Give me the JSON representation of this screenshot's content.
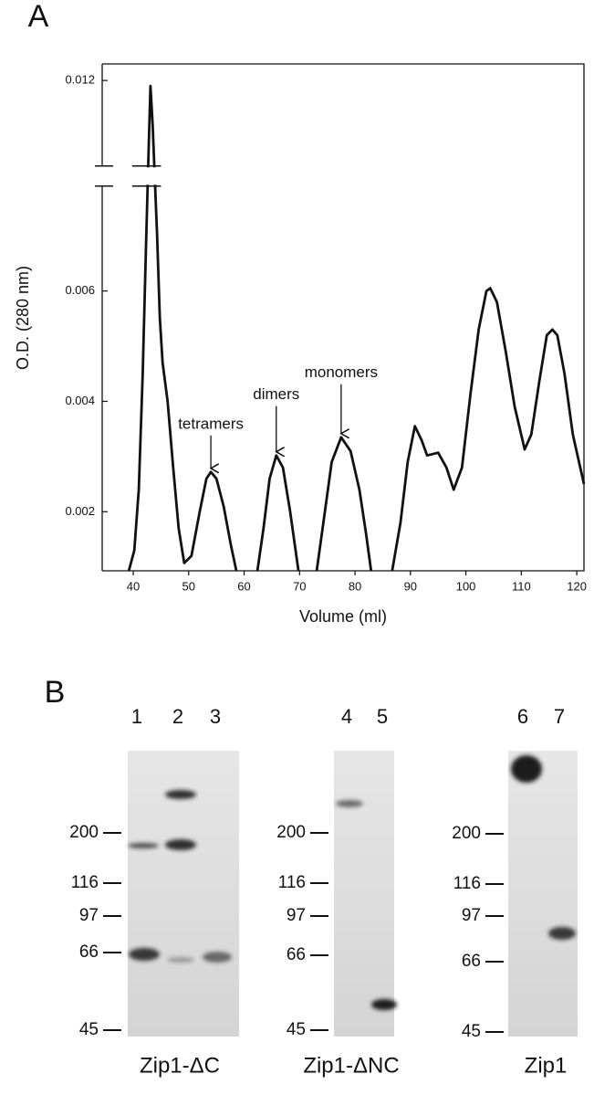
{
  "chart_data": {
    "type": "line",
    "panel_label": "A",
    "ylabel": "O.D. (280 nm)",
    "xlabel": "Volume (ml)",
    "xlim": [
      34.4,
      121.3
    ],
    "xticks": [
      40,
      50,
      60,
      70,
      80,
      90,
      100,
      110,
      120
    ],
    "ylim": [
      0.00093,
      0.0123
    ],
    "ybreak": [
      0.0079,
      0.01045
    ],
    "yticks": [
      0.002,
      0.004,
      0.006,
      0.012
    ],
    "series": [
      {
        "color": "#111111",
        "x": [
          39.2,
          40.2,
          41.0,
          41.7,
          42.3,
          42.8,
          43.1,
          43.5,
          44.3,
          44.8,
          45.3,
          46.2,
          47.2,
          48.2,
          49.2,
          50.5,
          52.0,
          53.2,
          54.0,
          55.0,
          56.3,
          57.6,
          58.6,
          null,
          62.4,
          63.5,
          64.6,
          65.8,
          67.0,
          68.3,
          69.8,
          null,
          73.1,
          74.3,
          75.8,
          77.5,
          79.2,
          80.8,
          82.0,
          82.9,
          null,
          86.7,
          88.2,
          89.5,
          90.8,
          92.0,
          93.0,
          95.0,
          96.5,
          97.8,
          99.3,
          100.8,
          102.3,
          103.7,
          104.4,
          105.6,
          107.2,
          108.8,
          110.6,
          111.8,
          113.3,
          114.6,
          115.6,
          116.5,
          117.8,
          119.3,
          121.3
        ],
        "values": [
          0.00093,
          0.0013,
          0.0024,
          0.0045,
          0.0068,
          0.0108,
          0.0119,
          0.0112,
          0.007,
          0.0055,
          0.0047,
          0.004,
          0.0028,
          0.0017,
          0.00107,
          0.0012,
          0.002,
          0.0026,
          0.00272,
          0.0026,
          0.0021,
          0.0014,
          0.00093,
          null,
          0.00093,
          0.0017,
          0.0026,
          0.00302,
          0.0028,
          0.002,
          0.00093,
          null,
          0.00093,
          0.0018,
          0.0029,
          0.00335,
          0.0031,
          0.0024,
          0.0016,
          0.00093,
          null,
          0.00093,
          0.0018,
          0.0029,
          0.00355,
          0.0033,
          0.00302,
          0.00307,
          0.0028,
          0.0024,
          0.0028,
          0.0041,
          0.0053,
          0.006,
          0.00605,
          0.0058,
          0.0049,
          0.0039,
          0.00313,
          0.0034,
          0.0044,
          0.0052,
          0.0053,
          0.0052,
          0.0045,
          0.0034,
          0.0025
        ]
      }
    ],
    "annotations": [
      {
        "text": "tetramers",
        "x": 54.0,
        "y": 0.00272
      },
      {
        "text": "dimers",
        "x": 65.8,
        "y": 0.00302
      },
      {
        "text": "monomers",
        "x": 77.5,
        "y": 0.00335
      }
    ]
  },
  "blot": {
    "panel_label": "B",
    "gels": [
      {
        "caption": "Zip1-ΔC",
        "lanes": [
          "1",
          "2",
          "3"
        ],
        "markers": [
          "200",
          "116",
          "97",
          "66",
          "45"
        ]
      },
      {
        "caption": "Zip1-ΔNC",
        "lanes": [
          "4",
          "5"
        ],
        "markers": [
          "200",
          "116",
          "97",
          "66",
          "45"
        ]
      },
      {
        "caption": "Zip1",
        "lanes": [
          "6",
          "7"
        ],
        "markers": [
          "200",
          "116",
          "97",
          "66",
          "45"
        ]
      }
    ]
  }
}
